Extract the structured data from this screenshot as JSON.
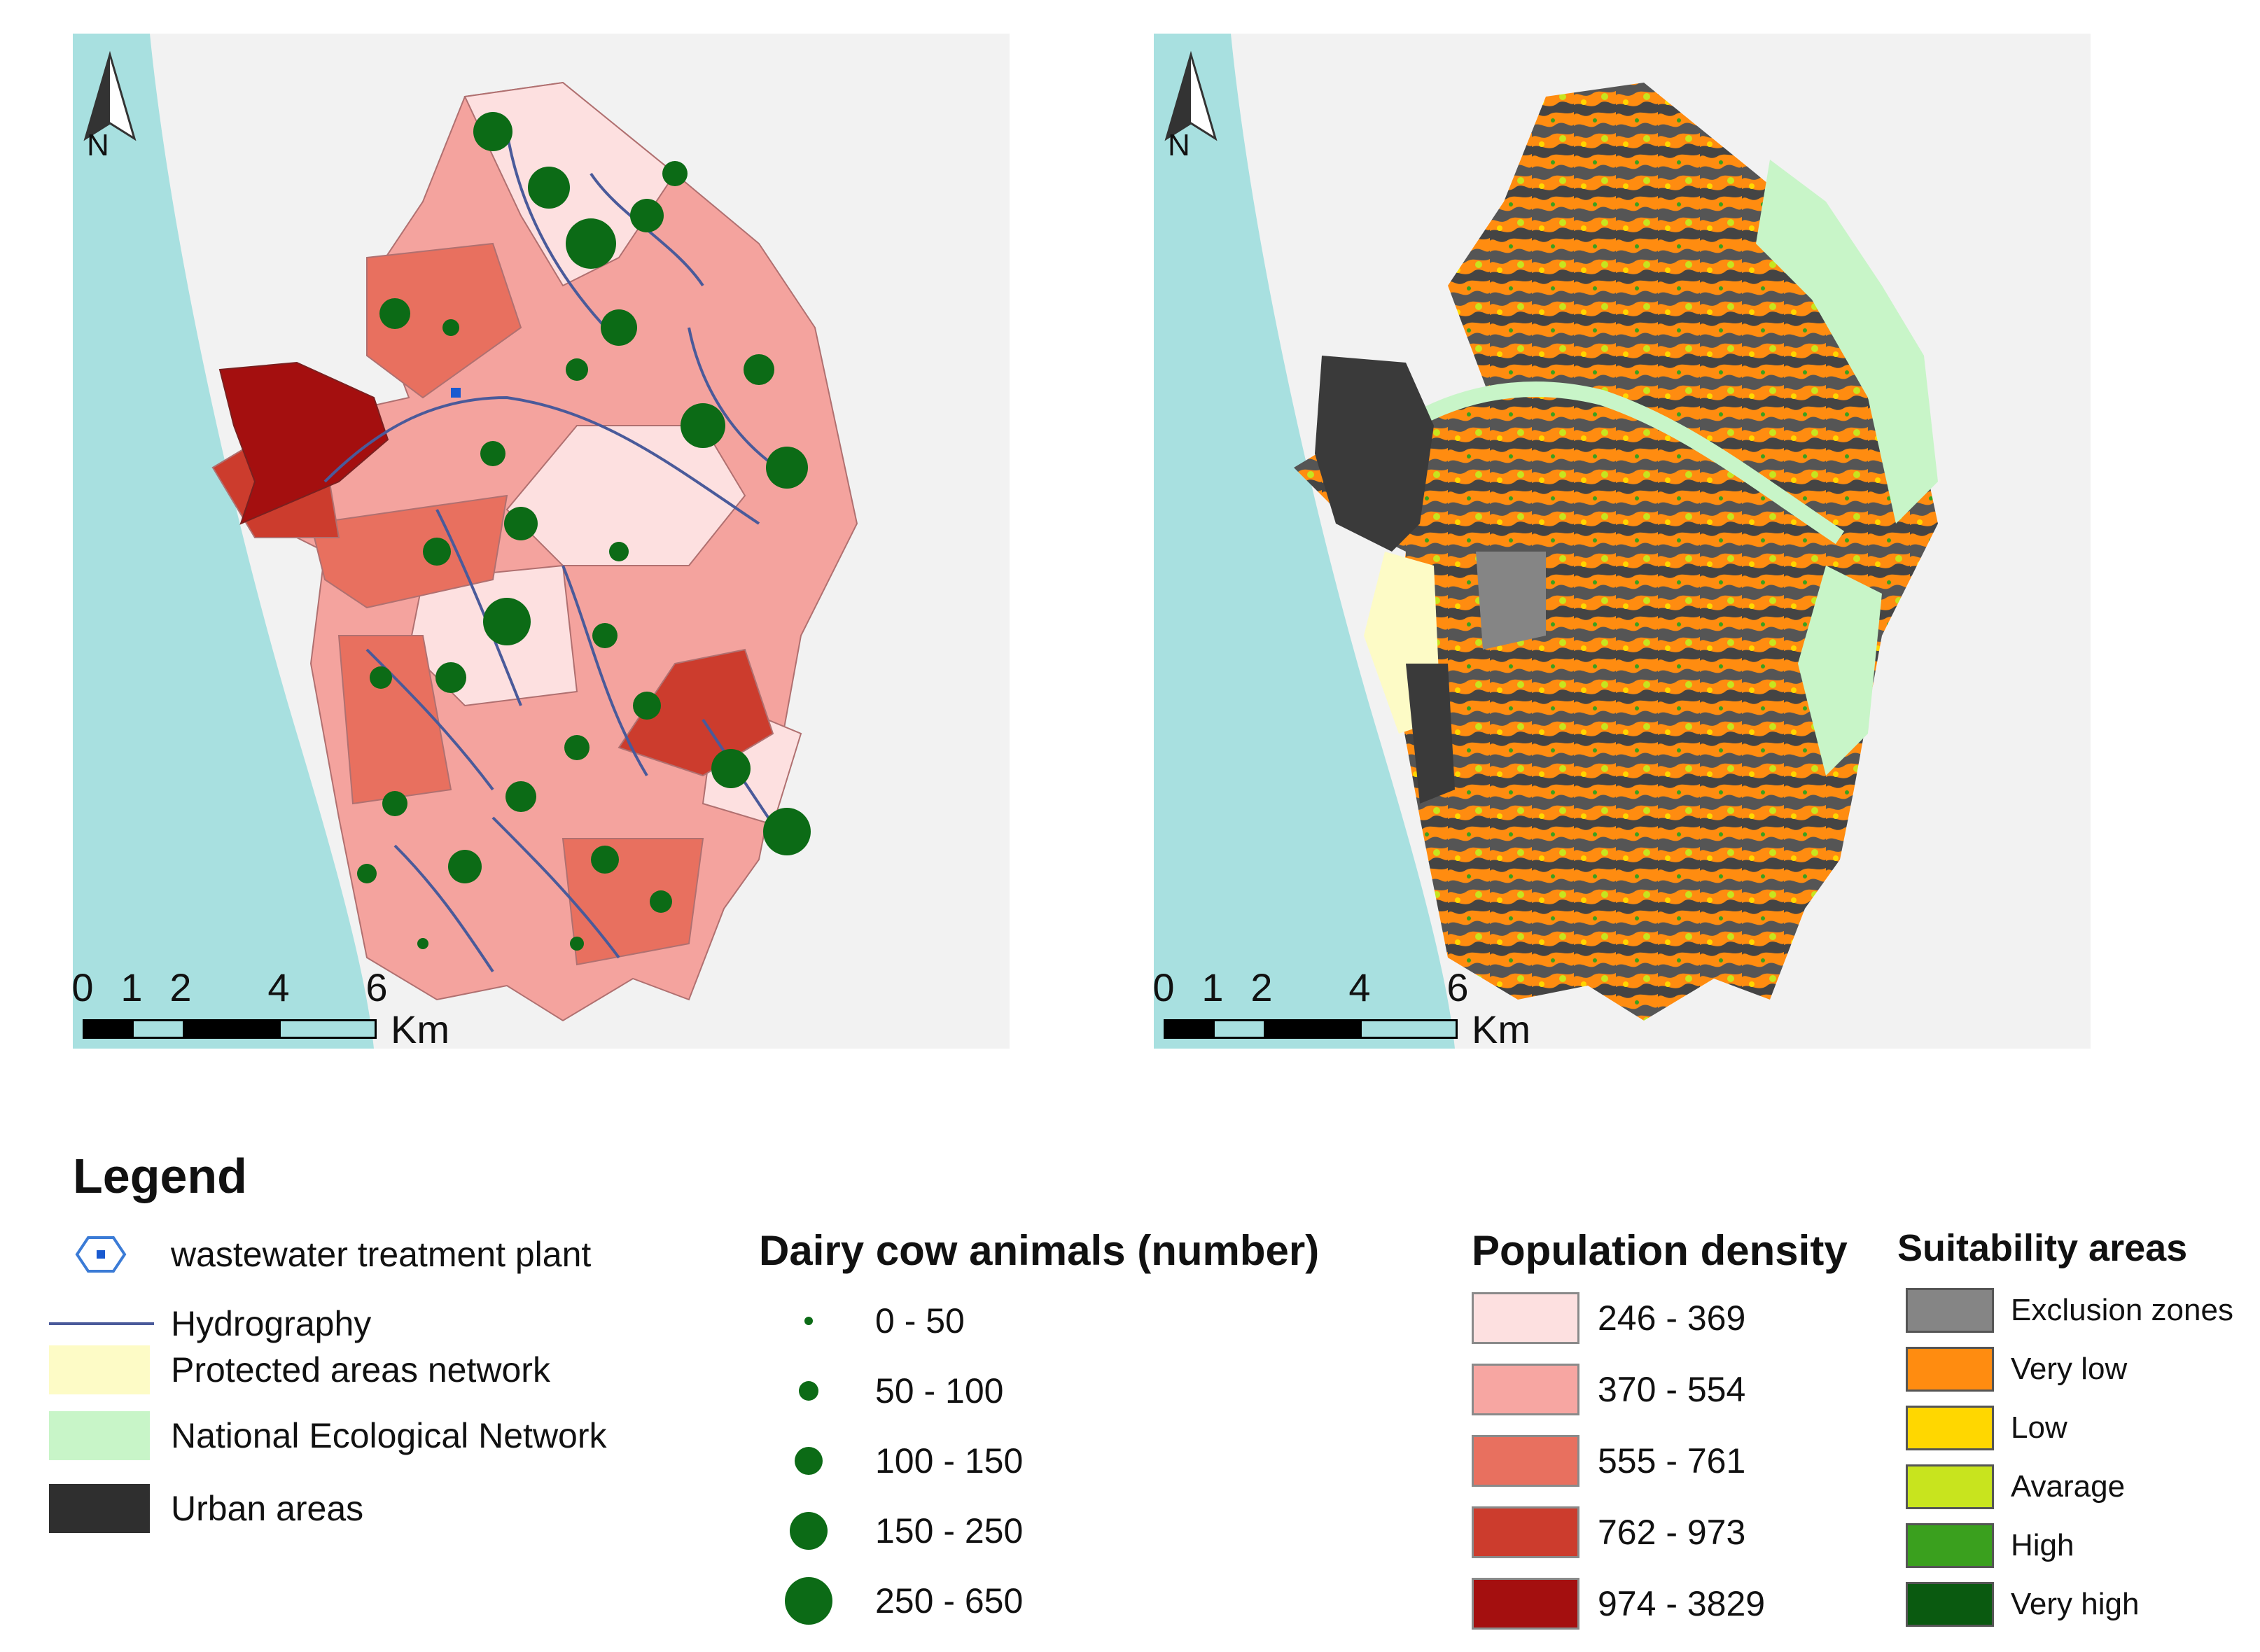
{
  "maps": {
    "left": {
      "north": "N",
      "scale_ticks": [
        "0",
        "1",
        "2",
        "4",
        "6"
      ],
      "scale_unit": "Km"
    },
    "right": {
      "north": "N",
      "scale_ticks": [
        "0",
        "1",
        "2",
        "4",
        "6"
      ],
      "scale_unit": "Km"
    }
  },
  "legend": {
    "title": "Legend",
    "items": [
      {
        "label": "wastewater treatment plant",
        "icon": "hexagon-icon"
      },
      {
        "label": "Hydrography",
        "icon": "line-icon"
      },
      {
        "label": "Protected areas network",
        "color": "#fdfbc6"
      },
      {
        "label": "National Ecological Network",
        "color": "#c8f5c8"
      },
      {
        "label": "Urban areas",
        "color": "#2f2f2f"
      }
    ]
  },
  "dairy": {
    "title": "Dairy cow animals (number)",
    "classes": [
      {
        "label": "0 - 50"
      },
      {
        "label": "50 - 100"
      },
      {
        "label": "100 - 150"
      },
      {
        "label": "150 - 250"
      },
      {
        "label": "250 - 650"
      }
    ],
    "color": "#0c6b16"
  },
  "population": {
    "title": "Population density",
    "classes": [
      {
        "label": "246 - 369",
        "color": "#fde0e0"
      },
      {
        "label": "370 - 554",
        "color": "#f7a6a2"
      },
      {
        "label": "555 - 761",
        "color": "#e8705f"
      },
      {
        "label": "762 - 973",
        "color": "#cc3c2d"
      },
      {
        "label": "974 - 3829",
        "color": "#a40f0f"
      }
    ]
  },
  "suitability": {
    "title": "Suitability areas",
    "classes": [
      {
        "label": "Exclusion zones",
        "color": "#858585"
      },
      {
        "label": "Very low",
        "color": "#ff8c10"
      },
      {
        "label": "Low",
        "color": "#ffd700"
      },
      {
        "label": "Avarage",
        "color": "#c8e41e"
      },
      {
        "label": "High",
        "color": "#3aa01e"
      },
      {
        "label": "Very high",
        "color": "#0a5a10"
      }
    ]
  },
  "colors": {
    "sea": "#a8e0e0",
    "river": "#4a5a9a"
  }
}
